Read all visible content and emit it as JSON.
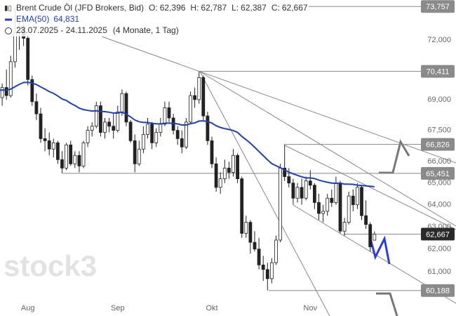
{
  "chart_data": {
    "type": "candlestick",
    "title": "Brent Crude Öl (JFD Brokers, Bid)",
    "ohlc": [
      {
        "name": "O:",
        "value": 62396,
        "label": "62,396"
      },
      {
        "name": "H:",
        "value": 62787,
        "label": "62,787"
      },
      {
        "name": "L:",
        "value": 62387,
        "label": "62,387"
      },
      {
        "name": "C:",
        "value": 62667,
        "label": "62,667"
      }
    ],
    "period": "23.07.2025 - 24.11.2025",
    "period_note": "(4 Monate, 1 Tag)",
    "watermark": "stock3",
    "log_scale": true,
    "ylim": [
      59100,
      74100
    ],
    "yticks": [
      {
        "value": 61000,
        "label": "61,000"
      },
      {
        "value": 62000,
        "label": "62,000"
      },
      {
        "value": 63000,
        "label": "63,000"
      },
      {
        "value": 64000,
        "label": "64,000"
      },
      {
        "value": 65000,
        "label": "65,000"
      },
      {
        "value": 66000,
        "label": "66,000"
      },
      {
        "value": 67500,
        "label": "67,500"
      },
      {
        "value": 69000,
        "label": "69,000"
      },
      {
        "value": 72000,
        "label": "72,000"
      }
    ],
    "categories": [
      null,
      null,
      null,
      null,
      null,
      null,
      null,
      "Aug",
      null,
      null,
      null,
      null,
      null,
      null,
      null,
      null,
      null,
      null,
      null,
      null,
      null,
      null,
      null,
      null,
      null,
      null,
      null,
      null,
      "Sep",
      null,
      null,
      null,
      null,
      null,
      null,
      null,
      null,
      null,
      null,
      null,
      null,
      null,
      null,
      null,
      null,
      null,
      null,
      null,
      null,
      null,
      "Okt",
      null,
      null,
      null,
      null,
      null,
      null,
      null,
      null,
      null,
      null,
      null,
      null,
      null,
      null,
      null,
      null,
      null,
      null,
      null,
      null,
      null,
      null,
      "Nov",
      null,
      null,
      null,
      null,
      null,
      null,
      null,
      null,
      null,
      null,
      null,
      null,
      null,
      null,
      null
    ],
    "candles": {
      "up_color": "#ffffff",
      "down_color": "#222222",
      "open": [
        69300,
        69100,
        69600,
        69200,
        70900,
        72400,
        72700,
        72100,
        70000,
        68900,
        68300,
        67100,
        67000,
        66600,
        66900,
        66100,
        65700,
        66800,
        65900,
        66300,
        65800,
        66900,
        67500,
        67700,
        68700,
        67400,
        67900,
        67700,
        67500,
        68400,
        69300,
        67900,
        67000,
        65900,
        66600,
        67300,
        67800,
        66900,
        67400,
        67800,
        68600,
        68100,
        67500,
        67100,
        66700,
        67900,
        69200,
        69000,
        70100,
        68200,
        67000,
        65900,
        64800,
        65200,
        65700,
        65500,
        66300,
        65200,
        62700,
        63200,
        62300,
        62000,
        61300,
        61100,
        60700,
        61400,
        62400,
        65700,
        65300,
        65000,
        64300,
        64800,
        64300,
        65100,
        64900,
        64100,
        63600,
        63700,
        64300,
        64100,
        65000,
        62800,
        63200,
        64400,
        64000,
        64800,
        63500,
        63100,
        62396
      ],
      "high": [
        69700,
        69800,
        70500,
        71200,
        73757,
        73200,
        73000,
        72300,
        70200,
        69300,
        68600,
        67600,
        67400,
        67100,
        67000,
        66500,
        66900,
        67000,
        66500,
        66500,
        67000,
        67700,
        67900,
        68900,
        68900,
        68100,
        68100,
        68300,
        68700,
        69500,
        69400,
        68000,
        67300,
        67000,
        67700,
        68100,
        67900,
        67600,
        68100,
        68900,
        68900,
        68300,
        67700,
        67500,
        68100,
        69400,
        69600,
        70411,
        70200,
        68400,
        67200,
        66200,
        65500,
        66100,
        66000,
        66600,
        66400,
        65300,
        63500,
        63300,
        62800,
        62500,
        61700,
        61400,
        61600,
        62600,
        65900,
        66826,
        65700,
        65200,
        65000,
        65200,
        65300,
        65600,
        65000,
        64500,
        64000,
        64500,
        64700,
        65300,
        65100,
        63400,
        64600,
        64700,
        65000,
        64900,
        64200,
        63200,
        62787
      ],
      "low": [
        68900,
        68700,
        69000,
        69100,
        70600,
        71500,
        71700,
        69700,
        68700,
        68000,
        66900,
        66500,
        66300,
        66200,
        65900,
        65451,
        65600,
        65800,
        65700,
        65500,
        65700,
        66700,
        67200,
        67600,
        67200,
        67100,
        67400,
        67100,
        67400,
        68200,
        67700,
        66900,
        65500,
        65800,
        66400,
        67100,
        66600,
        66700,
        67200,
        67700,
        67900,
        67300,
        66800,
        66400,
        66600,
        67800,
        68600,
        68800,
        68000,
        66800,
        65700,
        64600,
        64500,
        65000,
        65200,
        65300,
        65000,
        62500,
        62500,
        61800,
        61900,
        61100,
        60600,
        60188,
        60500,
        61300,
        62300,
        65100,
        64800,
        64000,
        64100,
        64000,
        64200,
        64700,
        63800,
        63300,
        63200,
        63500,
        63900,
        64000,
        62700,
        62600,
        63100,
        63700,
        63800,
        63300,
        62900,
        61900,
        62387
      ],
      "close": [
        69100,
        69600,
        69200,
        70900,
        72400,
        72700,
        72100,
        70000,
        68900,
        68300,
        67100,
        67000,
        66600,
        66900,
        66100,
        65700,
        66800,
        65900,
        66300,
        65800,
        66900,
        67500,
        67700,
        68700,
        67400,
        67900,
        67700,
        67500,
        68400,
        69300,
        67900,
        67000,
        65900,
        66600,
        67300,
        67800,
        66900,
        67400,
        67800,
        68600,
        68100,
        67500,
        67100,
        66700,
        67900,
        69200,
        69000,
        70100,
        68200,
        67000,
        65900,
        64800,
        65200,
        65700,
        65500,
        66300,
        65200,
        62700,
        63200,
        62300,
        62000,
        61300,
        61100,
        60700,
        61400,
        62400,
        65700,
        65300,
        65000,
        64300,
        64800,
        64300,
        65100,
        64900,
        64100,
        63600,
        63700,
        64300,
        64100,
        65000,
        62800,
        63200,
        64400,
        64000,
        64800,
        63500,
        63100,
        62100,
        62667
      ]
    },
    "ema": {
      "name": "EMA(50)",
      "color": "#1f3fbf",
      "value_label": "64,831",
      "values": [
        69450,
        69480,
        69470,
        69520,
        69640,
        69760,
        69850,
        69860,
        69820,
        69750,
        69630,
        69520,
        69400,
        69310,
        69180,
        69030,
        68960,
        68820,
        68710,
        68580,
        68510,
        68470,
        68440,
        68450,
        68420,
        68410,
        68380,
        68340,
        68340,
        68380,
        68280,
        68150,
        68000,
        67920,
        67880,
        67880,
        67840,
        67820,
        67810,
        67840,
        67850,
        67840,
        67810,
        67760,
        67760,
        67820,
        67860,
        67950,
        67960,
        67930,
        67850,
        67720,
        67640,
        67580,
        67540,
        67490,
        67400,
        67210,
        67050,
        66880,
        66690,
        66490,
        66290,
        66090,
        65910,
        65810,
        65720,
        65610,
        65510,
        65430,
        65360,
        65290,
        65240,
        65240,
        65210,
        65140,
        65080,
        65040,
        65000,
        64990,
        65000,
        64950,
        64950,
        64940,
        64900,
        64890,
        64870,
        64850,
        64831
      ]
    },
    "levels": [
      {
        "value": 73757,
        "label": "73,757"
      },
      {
        "value": 70411,
        "label": "70,411"
      },
      {
        "value": 66826,
        "label": "66,826"
      },
      {
        "value": 65451,
        "label": "65,451"
      },
      {
        "value": 62667,
        "label": "62,667",
        "current": true
      },
      {
        "value": 60188,
        "label": "60,188"
      }
    ]
  }
}
